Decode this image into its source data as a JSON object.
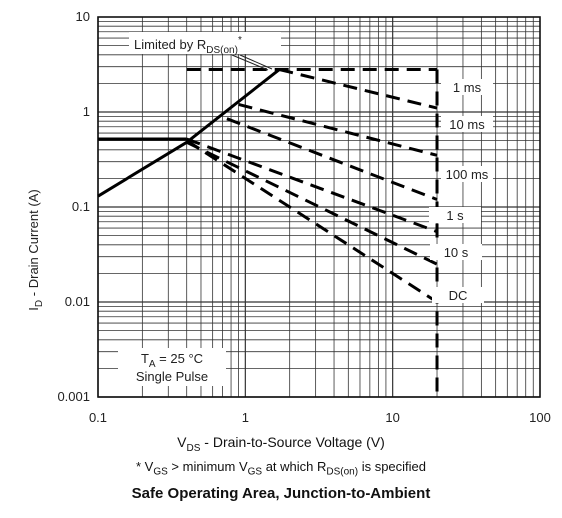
{
  "chart_data": {
    "type": "line",
    "title": "Safe Operating Area, Junction-to-Ambient",
    "xlabel": {
      "prefix": "V",
      "sub": "DS",
      "rest": " - Drain-to-Source Voltage (V)"
    },
    "ylabel": {
      "prefix": "I",
      "sub": "D",
      "rest": " - Drain Current (A)"
    },
    "x_scale": "log",
    "y_scale": "log",
    "xlim": [
      0.1,
      100
    ],
    "ylim": [
      0.001,
      10
    ],
    "x_ticks": [
      {
        "value": 0.1,
        "label": "0.1"
      },
      {
        "value": 1,
        "label": "1"
      },
      {
        "value": 10,
        "label": "10"
      },
      {
        "value": 100,
        "label": "100"
      }
    ],
    "y_ticks": [
      {
        "value": 10,
        "label": "10"
      },
      {
        "value": 1,
        "label": "1"
      },
      {
        "value": 0.1,
        "label": "0.1"
      },
      {
        "value": 0.01,
        "label": "0.01"
      },
      {
        "value": 0.001,
        "label": "0.001"
      }
    ],
    "grid": true,
    "series": [
      {
        "name": "Limited by R",
        "name_sub": "DS(on)",
        "name_sup": "*",
        "style": "solid",
        "x": [
          0.1,
          0.4,
          1.7
        ],
        "y": [
          0.13,
          0.48,
          2.8
        ]
      },
      {
        "name": "",
        "style": "solid",
        "x": [
          0.1,
          0.4
        ],
        "y": [
          0.52,
          0.52
        ]
      },
      {
        "name": "",
        "style": "dashed",
        "x": [
          0.4,
          1.7,
          20
        ],
        "y": [
          2.8,
          2.8,
          2.8
        ]
      },
      {
        "name": "1 ms",
        "style": "dashed",
        "x": [
          1.7,
          20
        ],
        "y": [
          2.8,
          1.1
        ]
      },
      {
        "name": "10 ms",
        "style": "dashed",
        "x": [
          0.9,
          20
        ],
        "y": [
          1.2,
          0.35
        ]
      },
      {
        "name": "100 ms",
        "style": "dashed",
        "x": [
          0.75,
          20
        ],
        "y": [
          0.85,
          0.12
        ]
      },
      {
        "name": "1 s",
        "style": "dashed",
        "x": [
          0.4,
          20
        ],
        "y": [
          0.52,
          0.055
        ]
      },
      {
        "name": "10 s",
        "style": "dashed",
        "x": [
          0.4,
          20
        ],
        "y": [
          0.48,
          0.025
        ]
      },
      {
        "name": "DC",
        "style": "dashed",
        "x": [
          0.4,
          20
        ],
        "y": [
          0.5,
          0.01
        ]
      },
      {
        "name": "",
        "style": "dashed",
        "x": [
          20,
          20
        ],
        "y": [
          2.8,
          0.001
        ]
      }
    ],
    "annotations": {
      "limited": {
        "text": "Limited by R",
        "sub": "DS(on)",
        "sup": "*"
      },
      "conditions_line1": "T",
      "conditions_line1_sub": "A",
      "conditions_line1_rest": " = 25 °C",
      "conditions_line2": "Single Pulse"
    },
    "footnote": {
      "p1": "* V",
      "s1": "GS",
      "p2": " >  minimum V",
      "s2": "GS",
      "p3": " at which R",
      "s3": "DS(on)",
      "p4": " is specified"
    }
  }
}
